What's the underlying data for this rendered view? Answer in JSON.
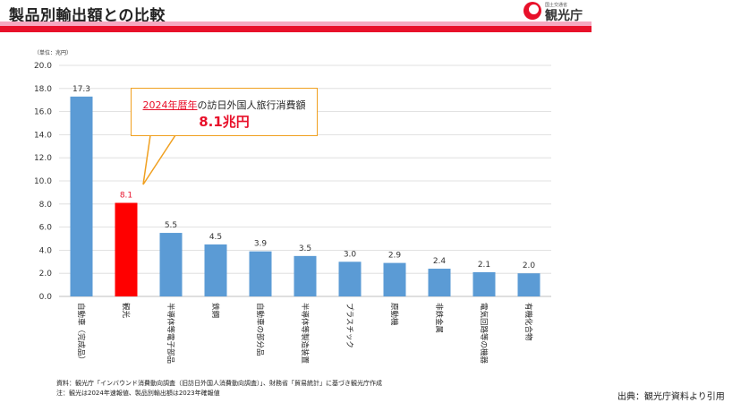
{
  "header": {
    "title": "製品別輸出額との比較",
    "logo_small": "国土交通省",
    "logo_text": "観光庁"
  },
  "chart_data": {
    "type": "bar",
    "unit_label": "（単位：兆円）",
    "categories": [
      "自動車（完成品）",
      "観光",
      "半導体等電子部品",
      "鉄鋼",
      "自動車の部分品",
      "半導体等製造装置",
      "プラスチック",
      "原動機",
      "非鉄金属",
      "電気回路等の機器",
      "有機化合物"
    ],
    "values": [
      17.3,
      8.1,
      5.5,
      4.5,
      3.9,
      3.5,
      3.0,
      2.9,
      2.4,
      2.1,
      2.0
    ],
    "value_labels": [
      "17.3",
      "8.1",
      "5.5",
      "4.5",
      "3.9",
      "3.5",
      "3.0",
      "2.9",
      "2.4",
      "2.1",
      "2.0"
    ],
    "highlight_index": 1,
    "colors": {
      "bar": "#5b9bd5",
      "highlight": "#ff0000",
      "highlight_label": "#e8102a",
      "label": "#333333"
    },
    "y_ticks": [
      "0.0",
      "2.0",
      "4.0",
      "6.0",
      "8.0",
      "10.0",
      "12.0",
      "14.0",
      "16.0",
      "18.0",
      "20.0"
    ],
    "ylim": [
      0,
      20
    ],
    "grid": true
  },
  "callout": {
    "highlight": "2024年暦年",
    "text": "の訪日外国人旅行消費額",
    "value": "8.1兆円"
  },
  "notes": {
    "source": "資料：観光庁「インバウンド消費動向調査（旧訪日外国人消費動向調査）」、財務省「貿易統計」に基づき観光庁作成",
    "note": "注：観光は2024年速報値、製品別輸出額は2023年確報値"
  },
  "credit": "出典：観光庁資料より引用"
}
